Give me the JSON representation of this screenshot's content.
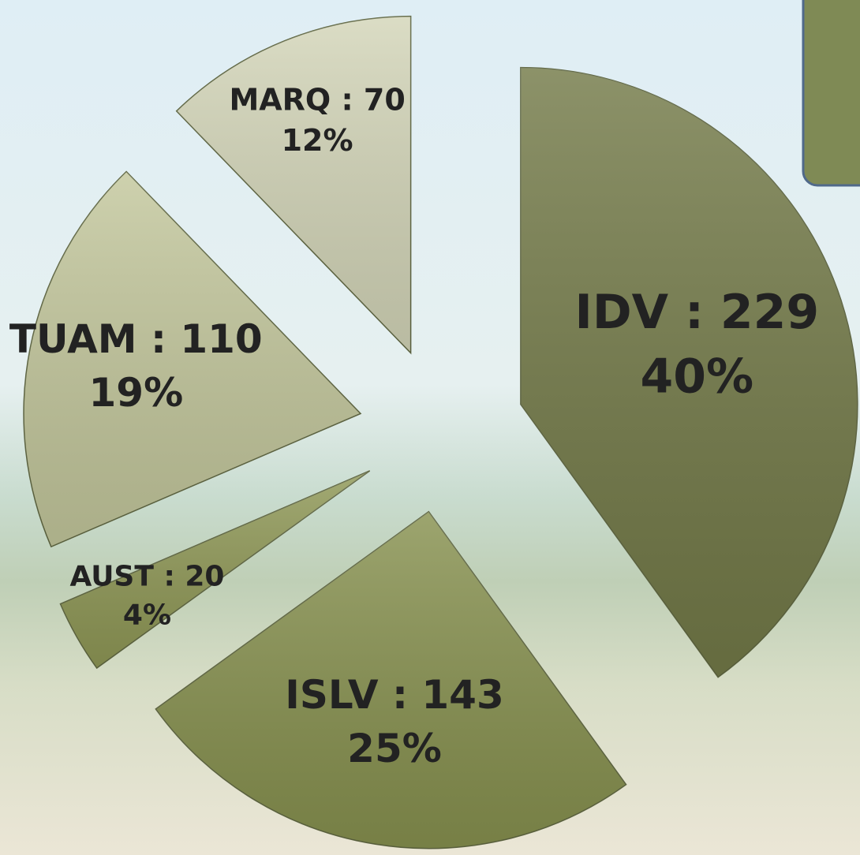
{
  "chart_data": {
    "type": "pie",
    "value_labels": [
      "IDV : 229",
      "ISLV : 143",
      "AUST : 20",
      "TUAM : 110",
      "MARQ : 70"
    ],
    "values": [
      229,
      143,
      20,
      110,
      70
    ],
    "percent_labels": [
      "40%",
      "25%",
      "4%",
      "19%",
      "12%"
    ],
    "colors": [
      "#737a48",
      "#87914f",
      "#8f9856",
      "#c3c79c",
      "#d3d5b8"
    ]
  }
}
